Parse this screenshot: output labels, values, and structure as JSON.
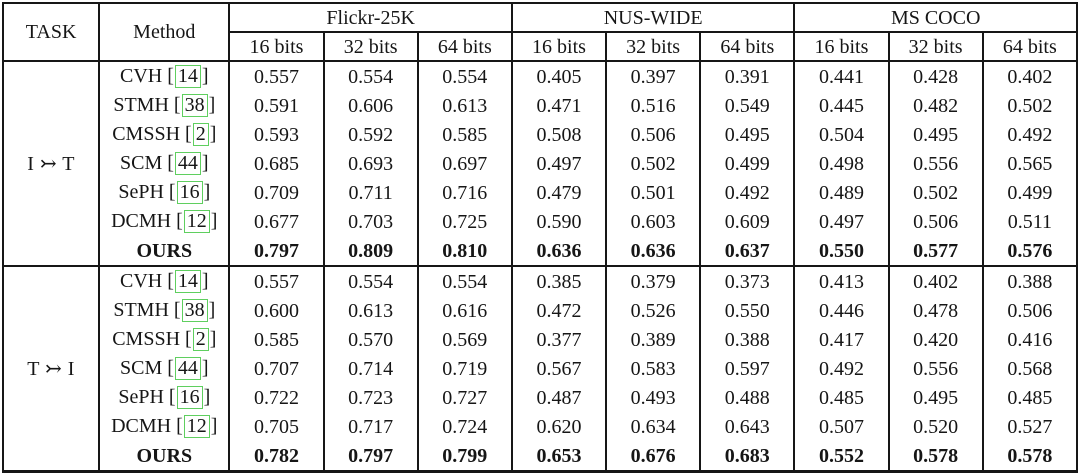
{
  "table": {
    "columns": {
      "task": "TASK",
      "method": "Method"
    },
    "datasets": [
      {
        "name": "Flickr-25K",
        "bits": [
          "16 bits",
          "32 bits",
          "64 bits"
        ]
      },
      {
        "name": "NUS-WIDE",
        "bits": [
          "16 bits",
          "32 bits",
          "64 bits"
        ]
      },
      {
        "name": "MS COCO",
        "bits": [
          "16 bits",
          "32 bits",
          "64 bits"
        ]
      }
    ],
    "groups": [
      {
        "task": "I ↣ T",
        "rows": [
          {
            "method": "CVH",
            "cite": "14",
            "bold": false,
            "values": [
              "0.557",
              "0.554",
              "0.554",
              "0.405",
              "0.397",
              "0.391",
              "0.441",
              "0.428",
              "0.402"
            ]
          },
          {
            "method": "STMH",
            "cite": "38",
            "bold": false,
            "values": [
              "0.591",
              "0.606",
              "0.613",
              "0.471",
              "0.516",
              "0.549",
              "0.445",
              "0.482",
              "0.502"
            ]
          },
          {
            "method": "CMSSH",
            "cite": "2",
            "bold": false,
            "values": [
              "0.593",
              "0.592",
              "0.585",
              "0.508",
              "0.506",
              "0.495",
              "0.504",
              "0.495",
              "0.492"
            ]
          },
          {
            "method": "SCM",
            "cite": "44",
            "bold": false,
            "values": [
              "0.685",
              "0.693",
              "0.697",
              "0.497",
              "0.502",
              "0.499",
              "0.498",
              "0.556",
              "0.565"
            ]
          },
          {
            "method": "SePH",
            "cite": "16",
            "bold": false,
            "values": [
              "0.709",
              "0.711",
              "0.716",
              "0.479",
              "0.501",
              "0.492",
              "0.489",
              "0.502",
              "0.499"
            ]
          },
          {
            "method": "DCMH",
            "cite": "12",
            "bold": false,
            "values": [
              "0.677",
              "0.703",
              "0.725",
              "0.590",
              "0.603",
              "0.609",
              "0.497",
              "0.506",
              "0.511"
            ]
          },
          {
            "method": "OURS",
            "cite": null,
            "bold": true,
            "values": [
              "0.797",
              "0.809",
              "0.810",
              "0.636",
              "0.636",
              "0.637",
              "0.550",
              "0.577",
              "0.576"
            ]
          }
        ]
      },
      {
        "task": "T ↣ I",
        "rows": [
          {
            "method": "CVH",
            "cite": "14",
            "bold": false,
            "values": [
              "0.557",
              "0.554",
              "0.554",
              "0.385",
              "0.379",
              "0.373",
              "0.413",
              "0.402",
              "0.388"
            ]
          },
          {
            "method": "STMH",
            "cite": "38",
            "bold": false,
            "values": [
              "0.600",
              "0.613",
              "0.616",
              "0.472",
              "0.526",
              "0.550",
              "0.446",
              "0.478",
              "0.506"
            ]
          },
          {
            "method": "CMSSH",
            "cite": "2",
            "bold": false,
            "values": [
              "0.585",
              "0.570",
              "0.569",
              "0.377",
              "0.389",
              "0.388",
              "0.417",
              "0.420",
              "0.416"
            ]
          },
          {
            "method": "SCM",
            "cite": "44",
            "bold": false,
            "values": [
              "0.707",
              "0.714",
              "0.719",
              "0.567",
              "0.583",
              "0.597",
              "0.492",
              "0.556",
              "0.568"
            ]
          },
          {
            "method": "SePH",
            "cite": "16",
            "bold": false,
            "values": [
              "0.722",
              "0.723",
              "0.727",
              "0.487",
              "0.493",
              "0.488",
              "0.485",
              "0.495",
              "0.485"
            ]
          },
          {
            "method": "DCMH",
            "cite": "12",
            "bold": false,
            "values": [
              "0.705",
              "0.717",
              "0.724",
              "0.620",
              "0.634",
              "0.643",
              "0.507",
              "0.520",
              "0.527"
            ]
          },
          {
            "method": "OURS",
            "cite": null,
            "bold": true,
            "values": [
              "0.782",
              "0.797",
              "0.799",
              "0.653",
              "0.676",
              "0.683",
              "0.552",
              "0.578",
              "0.578"
            ]
          }
        ]
      }
    ]
  },
  "colors": {
    "citation_box": "#5fcf5f",
    "border": "#161616",
    "text": "#161616",
    "background": "#ffffff"
  }
}
